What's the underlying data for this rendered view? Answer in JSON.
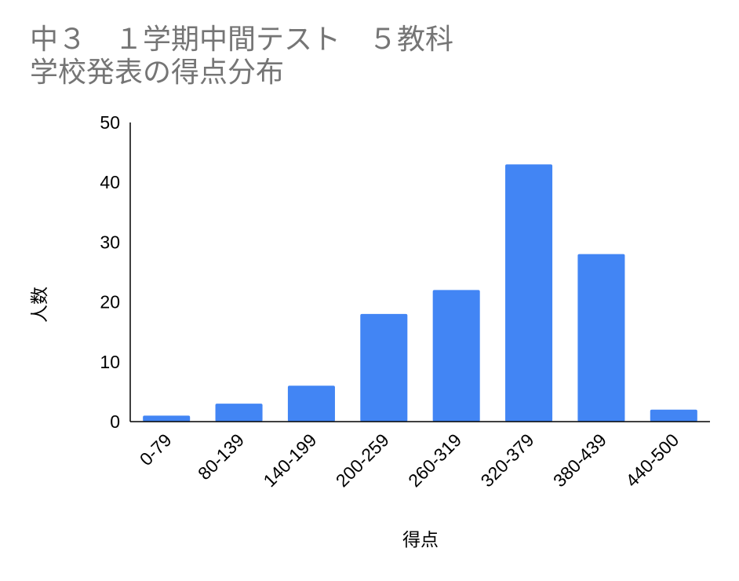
{
  "chart_data": {
    "type": "bar",
    "title_lines": [
      "中３　１学期中間テスト　５教科",
      "学校発表の得点分布"
    ],
    "xlabel": "得点",
    "ylabel": "人数",
    "categories": [
      "0-79",
      "80-139",
      "140-199",
      "200-259",
      "260-319",
      "320-379",
      "380-439",
      "440-500"
    ],
    "values": [
      1,
      3,
      6,
      18,
      22,
      43,
      28,
      2
    ],
    "ylim": [
      0,
      50
    ],
    "yticks": [
      0,
      10,
      20,
      30,
      40,
      50
    ],
    "bar_color": "#4285f4",
    "grid": false,
    "legend": "none"
  }
}
